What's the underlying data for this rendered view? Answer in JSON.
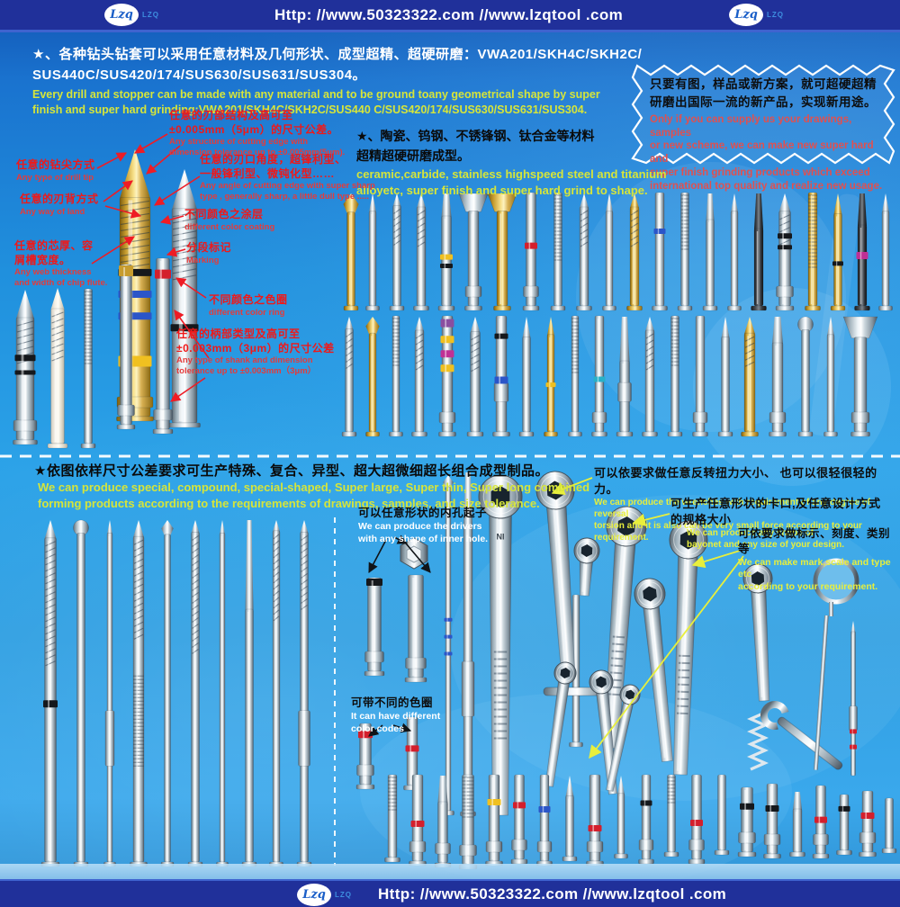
{
  "colors": {
    "bar_navy": "#20309a",
    "accent_red": "#ee1c25",
    "accent_yellow": "#d6e53a",
    "bg_blue": "#2ba2e8"
  },
  "header": {
    "url": "Http:  //www.50323322.com    //www.lzqtool .com",
    "logo": "LZQ",
    "logo_mono": "Lzq"
  },
  "footer": {
    "url": "Http:  //www.50323322.com    //www.lzqtool .com",
    "logo": "LZQ",
    "logo_mono": "Lzq"
  },
  "section1": {
    "intro_cn": "★、各种钻头钻套可以采用任意材料及几何形状、成型超精、超硬研磨：VWA201/SKH4C/SKH2C/\nSUS440C/SUS420/174/SUS630/SUS631/SUS304。",
    "intro_en": "Every drill and stopper can be made with any material and to be ground toany geometrical shape by super\nfinish and super hard grinding:VWA201/SKH4C/SKH2C/SUS440 C/SUS420/174/SUS630/SUS631/SUS304.",
    "star_cn": "只要有图，样品或新方案，就可超硬超精\n研磨出国际一流的新产品，实现新用途。",
    "star_en": "Only if you can supply us your drawings, samples\nor new scheme, we can make new super hard and\nsuper finish grinding products which exceed\ninternational top quality and realize new usage.",
    "materials_cn": "★、陶瓷、钨钢、不锈锋钢、钛合金等材料\n超精超硬研磨成型。",
    "materials_en": "ceramic,carbide, stainless highspeed steel and titanium\n alloyetc, super finish and super hard grind to shape.",
    "ann": {
      "edge_cn": "任意的刃部结构及高可至\n±0.005mm（5μm）的尺寸公差。",
      "edge_en": "Any structure of cutting edge with\ndimension tolerance up to ±0.005mm(5μm).",
      "angle_cn": "任意的刃口角度，超锋利型、\n一般锋利型、微钝化型……",
      "angle_en": "Any angle of cutting edge with super sharp\ntype , generally sharp, a little dull type .....",
      "tip_cn": "任意的钻尖方式",
      "tip_en": "Any type of drill tip",
      "land_cn": "任意的刃背方式",
      "land_en": "Any way of land",
      "web_cn": "任意的芯厚、容\n屑槽宽度。",
      "web_en": "Any web thickness\nand width of chip flute.",
      "coating_cn": "不同颜色之涂层",
      "coating_en": "different color coating",
      "marking_cn": "分段标记",
      "marking_en": "Marking",
      "ring_cn": "不同颜色之色圈",
      "ring_en": "different color ring",
      "shank_cn": "任意的柄部类型及高可至\n±0.003mm（3μm）的尺寸公差",
      "shank_en": "Any type of shank and dimension\ntolerance up to ±0.003mm（3μm）"
    }
  },
  "section2": {
    "headline_cn": "★依图依样尺寸公差要求可生产特殊、复合、异型、超大超微细超长组合成型制品。",
    "headline_en": " We can produce special, compound, special-shaped, Super large, Super thin, Super long combined\nforming products according to the requirements of drawings, samples, and size tolerance.",
    "wrench_label": "IN",
    "ann": {
      "torsion_cn": "可以依要求做任意反转扭力大小、 也可以很轻很轻的力。",
      "torsion_en": "We can produce the wrenches with requirement of any degree of reversal\ntorsion and it is also can be very small force according to your requirement.",
      "bayonet_cn": "可生产任意形状的卡口,及任意设计方式\n的规格大小",
      "bayonet_en": "We can produce any shape of\nbayonet and any size of your design.",
      "mark_cn": "可依要求做标示、刻度、类别等",
      "mark_en": "We can make mark,scale and type etc\naccording to your requirement.",
      "driver_cn": "可以任意形状的内孔起子",
      "driver_en": "We can produce the drivers\nwith any shape of inner hole.",
      "ringcode_cn": "可带不同的色圈",
      "ringcode_en": "It can have different\ncolor codes"
    }
  }
}
